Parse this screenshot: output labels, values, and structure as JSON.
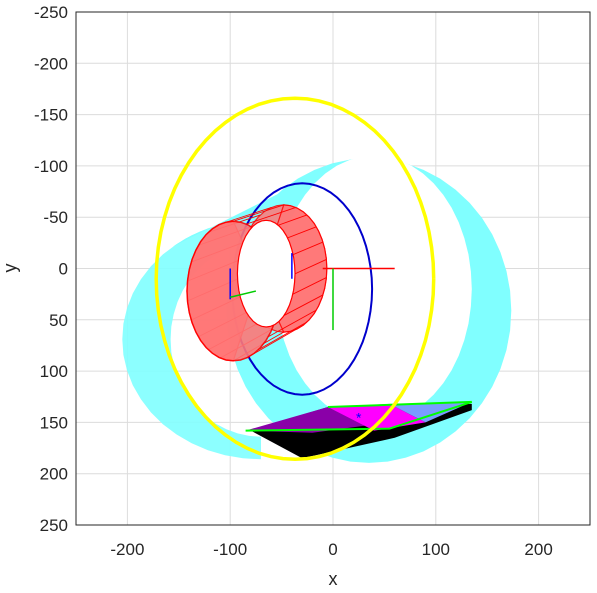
{
  "chart_data": {
    "type": "3d-surface-projection",
    "xlabel": "x",
    "ylabel": "y",
    "xlim": [
      -250,
      250
    ],
    "ylim": [
      -250,
      250
    ],
    "y_axis_reversed": true,
    "grid": true,
    "x_ticks": [
      -200,
      -100,
      0,
      100,
      200
    ],
    "y_ticks": [
      -250,
      -200,
      -150,
      -100,
      -50,
      0,
      50,
      100,
      150,
      200,
      250
    ],
    "colors": {
      "ring_band": "#80ffff",
      "ring_outline": "#ffff00",
      "drum": "#ff7777",
      "drum_outline": "#ff0000",
      "orbit": "#0000cc",
      "panel_magenta": "#ff00ff",
      "panel_purple": "#8a00a8",
      "panel_blue": "#7a9cff",
      "panel_black": "#000000",
      "panel_edge": "#00ff00",
      "axis_x": "#ff0000",
      "axis_y": "#00cc00",
      "axis_z": "#0000ff"
    }
  }
}
